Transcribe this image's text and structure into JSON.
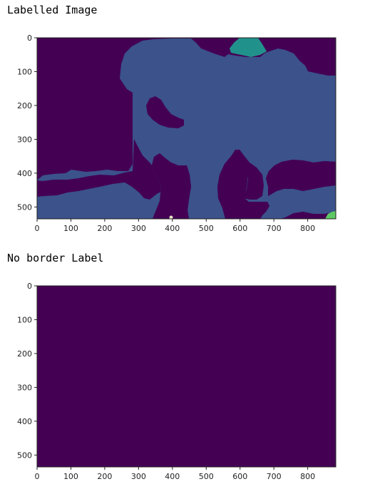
{
  "cells": [
    {
      "output_text": "Labelled Image"
    },
    {
      "output_text": "No border Label"
    }
  ],
  "colors": {
    "dark_purple": "#440154",
    "blue": "#3b528b",
    "teal": "#21918c",
    "green": "#5ec962",
    "light": "#fde725",
    "axis": "#222222"
  },
  "chart_data": [
    {
      "type": "heatmap",
      "title": "",
      "xlabel": "",
      "ylabel": "",
      "xlim": [
        0,
        883
      ],
      "ylim": [
        535,
        0
      ],
      "x_ticks": [
        "0",
        "100",
        "200",
        "300",
        "400",
        "500",
        "600",
        "700",
        "800"
      ],
      "y_ticks": [
        "0",
        "100",
        "200",
        "300",
        "400",
        "500"
      ],
      "label_regions": [
        {
          "label": 0,
          "color": "#440154",
          "description_value": "background"
        },
        {
          "label": 1,
          "color": "#3b528b",
          "description_value": "large central region"
        },
        {
          "label": 2,
          "color": "#21918c",
          "description_value": "top region"
        },
        {
          "label": 3,
          "color": "#5ec962",
          "description_value": "bottom-right corner region"
        },
        {
          "label": 4,
          "color": "#fde725",
          "description_value": "small bottom region"
        }
      ]
    },
    {
      "type": "heatmap",
      "title": "",
      "xlabel": "",
      "ylabel": "",
      "xlim": [
        0,
        883
      ],
      "ylim": [
        535,
        0
      ],
      "x_ticks": [
        "0",
        "100",
        "200",
        "300",
        "400",
        "500",
        "600",
        "700",
        "800"
      ],
      "y_ticks": [
        "0",
        "100",
        "200",
        "300",
        "400",
        "500"
      ],
      "label_regions": [
        {
          "label": 0,
          "color": "#440154"
        }
      ]
    }
  ]
}
